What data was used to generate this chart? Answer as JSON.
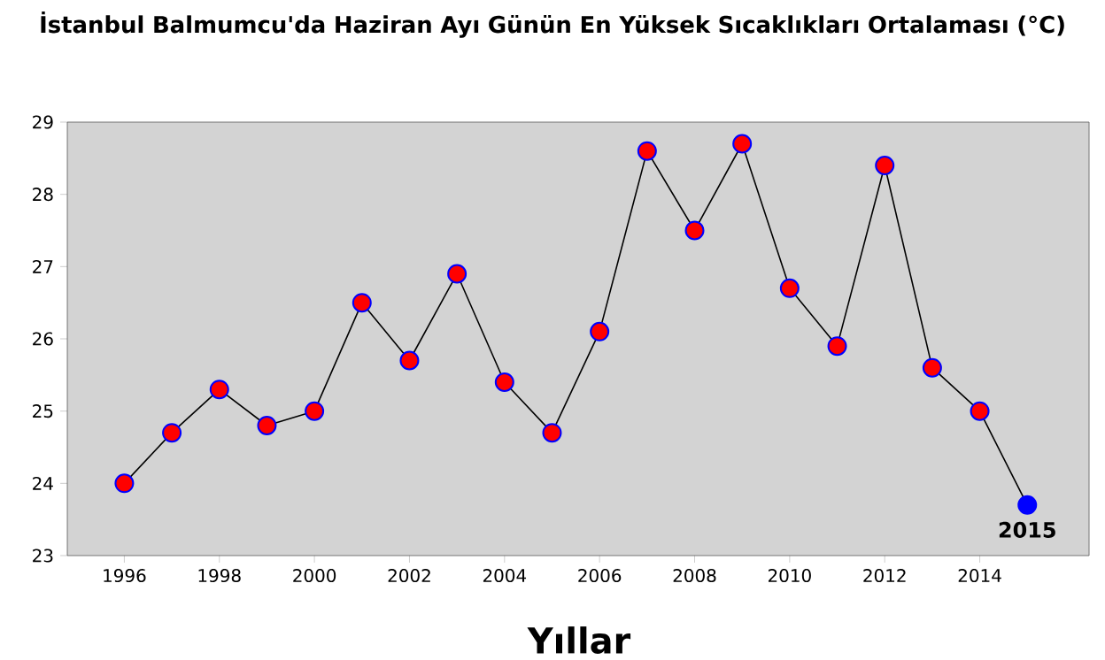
{
  "chart_data": {
    "type": "line",
    "title": "İstanbul Balmumcu'da Haziran Ayı Günün En Yüksek Sıcaklıkları Ortalaması (°C)",
    "xlabel": "Yıllar",
    "x": [
      1996,
      1997,
      1998,
      1999,
      2000,
      2001,
      2002,
      2003,
      2004,
      2005,
      2006,
      2007,
      2008,
      2009,
      2010,
      2011,
      2012,
      2013,
      2014,
      2015
    ],
    "series": [
      {
        "color": "#000000",
        "values": [
          24.0,
          24.7,
          25.3,
          24.8,
          25.0,
          26.5,
          25.7,
          26.9,
          25.4,
          24.7,
          26.1,
          28.6,
          27.5,
          28.7,
          26.7,
          25.9,
          28.4,
          25.6,
          25.0,
          23.7
        ],
        "colors": [
          "#ff0000",
          "#ff0000",
          "#ff0000",
          "#ff0000",
          "#ff0000",
          "#ff0000",
          "#ff0000",
          "#ff0000",
          "#ff0000",
          "#ff0000",
          "#ff0000",
          "#ff0000",
          "#ff0000",
          "#ff0000",
          "#ff0000",
          "#ff0000",
          "#ff0000",
          "#ff0000",
          "#ff0000",
          "#0000ff"
        ]
      }
    ],
    "xlim": [
      1994.8,
      2016.3
    ],
    "xticks": [
      1996,
      1998,
      2000,
      2002,
      2004,
      2006,
      2008,
      2010,
      2012,
      2014
    ],
    "ylim": [
      23,
      29
    ],
    "yticks": [
      23,
      24,
      25,
      26,
      27,
      28,
      29
    ],
    "marker": "circle",
    "grid": false,
    "annotations": [
      {
        "text": "2015",
        "x": 2015,
        "y": 23.7
      }
    ]
  }
}
